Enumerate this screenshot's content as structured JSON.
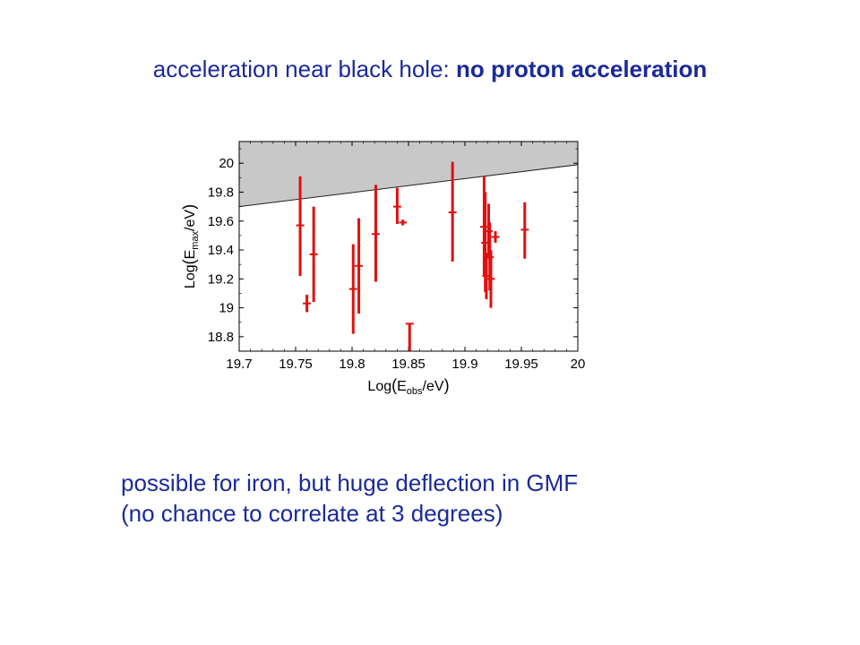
{
  "slide": {
    "title_normal": "acceleration near black hole: ",
    "title_bold": "no proton acceleration",
    "note_lines": [
      "possible for iron, but huge deflection in GMF",
      "(no chance to correlate at 3 degrees)"
    ]
  },
  "colors": {
    "text": "#1a2a9a",
    "points": "#e01010",
    "excluded_region": "#c8c8c8"
  },
  "chart_data": {
    "type": "scatter",
    "xlabel_main": "Log",
    "xlabel_sub": "obs",
    "xlabel_rest": "/eV",
    "ylabel_main": "Log",
    "ylabel_sub": "max",
    "ylabel_rest": "/eV",
    "xlim": [
      19.7,
      20.0
    ],
    "ylim": [
      18.7,
      20.15
    ],
    "x_ticks": [
      19.7,
      19.75,
      19.8,
      19.85,
      19.9,
      19.95,
      20.0
    ],
    "x_tick_labels": [
      "19.7",
      "19.75",
      "19.8",
      "19.85",
      "19.9",
      "19.95",
      "20"
    ],
    "y_ticks": [
      18.8,
      19.0,
      19.2,
      19.4,
      19.6,
      19.8,
      20.0
    ],
    "y_tick_labels": [
      "18.8",
      "19",
      "19.2",
      "19.4",
      "19.6",
      "19.8",
      "20"
    ],
    "boundary_line": {
      "x": [
        19.7,
        20.0
      ],
      "y": [
        19.7,
        19.99
      ]
    },
    "points": [
      {
        "x": 19.754,
        "y": 19.57,
        "ylo": 19.22,
        "yhi": 19.91
      },
      {
        "x": 19.76,
        "y": 19.03,
        "ylo": 18.97,
        "yhi": 19.09
      },
      {
        "x": 19.766,
        "y": 19.37,
        "ylo": 19.04,
        "yhi": 19.7
      },
      {
        "x": 19.801,
        "y": 19.13,
        "ylo": 18.82,
        "yhi": 19.44
      },
      {
        "x": 19.806,
        "y": 19.29,
        "ylo": 18.96,
        "yhi": 19.62
      },
      {
        "x": 19.821,
        "y": 19.51,
        "ylo": 19.18,
        "yhi": 19.85
      },
      {
        "x": 19.84,
        "y": 19.7,
        "ylo": 19.58,
        "yhi": 19.83
      },
      {
        "x": 19.845,
        "y": 19.59,
        "ylo": 19.57,
        "yhi": 19.61
      },
      {
        "x": 19.851,
        "y": 18.89,
        "ylo": 18.7,
        "yhi": 18.89
      },
      {
        "x": 19.889,
        "y": 19.66,
        "ylo": 19.32,
        "yhi": 20.01
      },
      {
        "x": 19.917,
        "y": 19.56,
        "ylo": 19.22,
        "yhi": 19.91
      },
      {
        "x": 19.918,
        "y": 19.45,
        "ylo": 19.11,
        "yhi": 19.8
      },
      {
        "x": 19.919,
        "y": 19.22,
        "ylo": 19.06,
        "yhi": 19.38
      },
      {
        "x": 19.921,
        "y": 19.53,
        "ylo": 19.34,
        "yhi": 19.72
      },
      {
        "x": 19.922,
        "y": 19.35,
        "ylo": 19.12,
        "yhi": 19.59
      },
      {
        "x": 19.923,
        "y": 19.2,
        "ylo": 19.0,
        "yhi": 19.4
      },
      {
        "x": 19.927,
        "y": 19.49,
        "ylo": 19.45,
        "yhi": 19.53
      },
      {
        "x": 19.953,
        "y": 19.54,
        "ylo": 19.34,
        "yhi": 19.73
      }
    ]
  }
}
